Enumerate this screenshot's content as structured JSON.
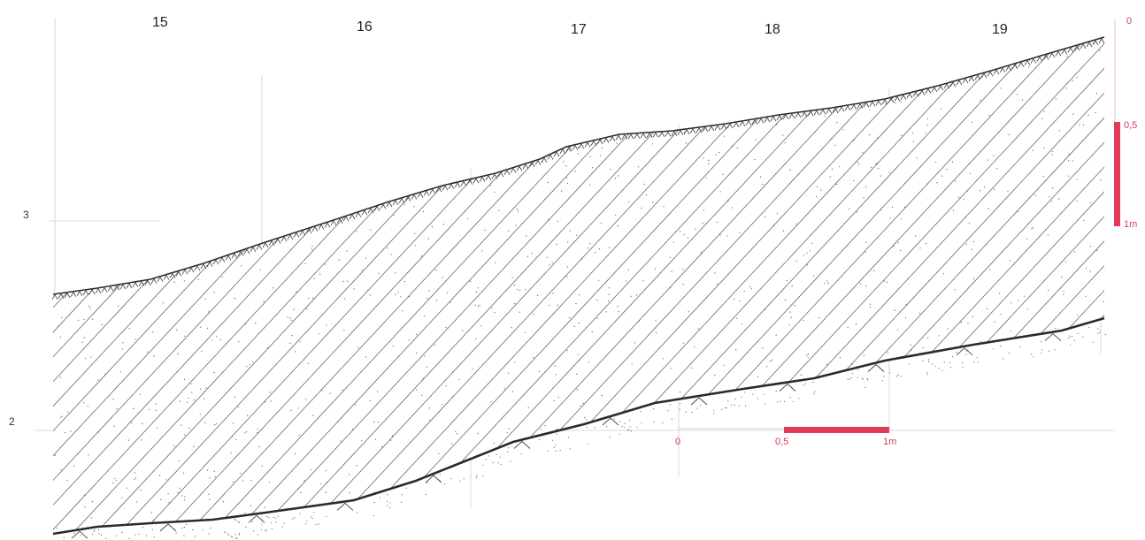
{
  "grid_numbers": [
    "15",
    "16",
    "17",
    "18",
    "19"
  ],
  "level_labels": {
    "upper": "3",
    "lower": "2"
  },
  "vertical_scale": {
    "top": "0",
    "mid": "0,5",
    "bottom": "1m"
  },
  "horizontal_scale": {
    "start": "0",
    "mid": "0,5",
    "end": "1m"
  },
  "colors": {
    "scale_bar": "#e23a57",
    "scale_text": "#d0405a",
    "line": "#2a2a2a",
    "grid": "#d8d8d8",
    "hatch": "#6b6b50"
  }
}
